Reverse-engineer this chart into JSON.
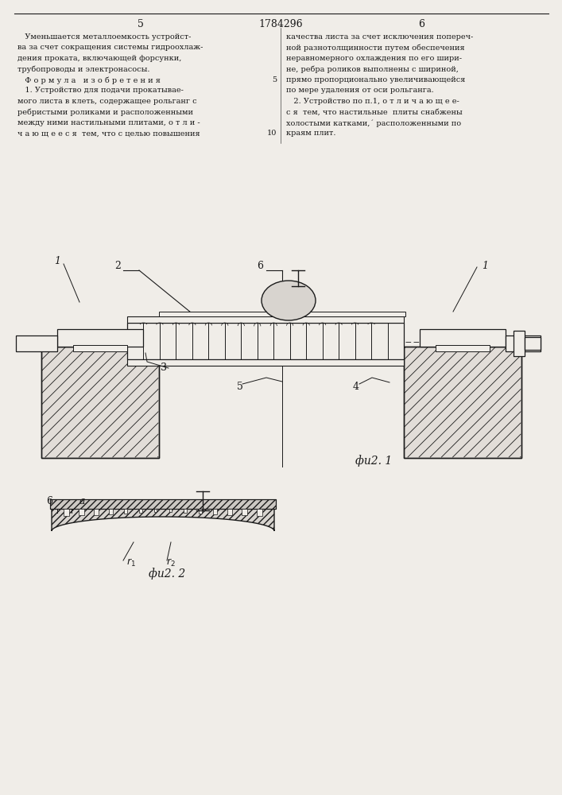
{
  "page_number_left": "5",
  "page_number_center": "1784296",
  "page_number_right": "6",
  "fig1_label": "фu2. 1",
  "fig2_label": "фu2. 2",
  "background_color": "#f0ede8",
  "line_color": "#1a1a1a",
  "text_color": "#1a1a1a",
  "left_text_lines": [
    "   Уменьшается металлоемкость устройст-",
    "ва за счет сокращения системы гидроохлаж-",
    "дения проката, включающей форсунки,",
    "трубопроводы и электронасосы.",
    "   Ф о р м у л а   и з о б р е т е н и я",
    "   1. Устройство для подачи прокатывае-",
    "мого листа в клеть, содержащее рольганг с",
    "ребристыми роликами и расположенными",
    "между ними настильными плитами, о т л и -",
    "ч а ю щ е е с я  тем, что с целью повышения"
  ],
  "right_text_lines": [
    "качества листа за счет исключения попереч-",
    "ной разнотолщинности путем обеспечения",
    "неравномерного охлаждения по его шири-",
    "не, ребра роликов выполнены с шириной,",
    "прямо пропорционально увеличивающейся",
    "по мере удаления от оси рольганга.",
    "   2. Устройство по п.1, о т л и ч а ю щ е е-",
    "с я  тем, что настильные  плиты снабжены",
    "холостыми катками,´ расположенными по",
    "краям плит."
  ],
  "line_num_5": "5",
  "line_num_10": "10"
}
